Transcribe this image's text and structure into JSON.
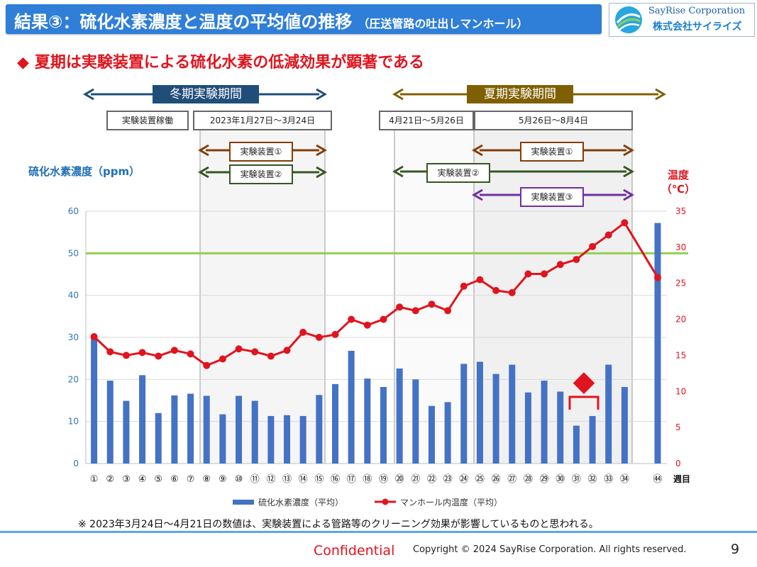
{
  "header": {
    "title": "結果③：硫化水素濃度と温度の平均値の推移",
    "subtitle": "（圧送管路の吐出しマンホール）",
    "logo_en": "SayRise Corporation",
    "logo_jp": "株式会社サイライズ"
  },
  "headline": {
    "marker": "◆",
    "text": "夏期は実験装置による硫化水素の低減効果が顕著である"
  },
  "periods": {
    "winter": "冬期実験期間",
    "summer": "夏期実験期間",
    "winter_op": "実験装置稼働",
    "winter_range": "2023年1月27日～3月24日",
    "summer_range1": "4月21日～5月26日",
    "summer_range2": "5月26日～8月4日",
    "device1": "実験装置①",
    "device2": "実験装置②",
    "device3": "実験装置③"
  },
  "colors": {
    "winter": "#1f4e79",
    "summer": "#7f6000",
    "device1": "#843c0c",
    "device2": "#375623",
    "device3": "#7030a0",
    "bar": "#4472c4",
    "line": "#e0141e",
    "threshold": "#92d050"
  },
  "chart_data": {
    "type": "bar",
    "ylabel": "硫化水素濃度（ppm）",
    "y2label": "温度（℃）",
    "xlabel": "週目",
    "ylim": [
      0,
      60
    ],
    "y2lim": [
      0,
      35
    ],
    "yticks": [
      "0",
      "10",
      "20",
      "30",
      "40",
      "50",
      "60"
    ],
    "y2ticks": [
      "0",
      "5",
      "10",
      "15",
      "20",
      "25",
      "30",
      "35"
    ],
    "threshold": 50,
    "categories": [
      "①",
      "②",
      "③",
      "④",
      "⑤",
      "⑥",
      "⑦",
      "⑧",
      "⑨",
      "⑩",
      "⑪",
      "⑫",
      "⑬",
      "⑭",
      "⑮",
      "⑯",
      "⑰",
      "⑱",
      "⑲",
      "⑳",
      "㉑",
      "㉒",
      "㉓",
      "㉔",
      "㉕",
      "㉖",
      "㉗",
      "㉘",
      "㉙",
      "㉚",
      "㉛",
      "㉜",
      "㉝",
      "㉞",
      "㊹"
    ],
    "series": [
      {
        "name": "硫化水素濃度（平均）",
        "type": "bar",
        "axis": "left",
        "values": [
          30,
          19.7,
          14.9,
          21,
          12,
          16.2,
          16.6,
          16.1,
          11.7,
          16.1,
          14.9,
          11.3,
          11.5,
          11.3,
          16.3,
          18.9,
          26.8,
          20.2,
          18.2,
          22.6,
          20,
          13.7,
          14.6,
          23.7,
          24.2,
          21.3,
          23.5,
          16.9,
          19.7,
          17.1,
          9,
          11.3,
          23.5,
          18.2,
          57.2
        ]
      },
      {
        "name": "マンホール内温度（平均）",
        "type": "line",
        "axis": "right",
        "values": [
          17.6,
          15.5,
          15,
          15.4,
          14.9,
          15.7,
          15.2,
          13.6,
          14.5,
          15.9,
          15.5,
          14.9,
          15.7,
          18.2,
          17.5,
          17.9,
          20,
          19.2,
          20,
          21.7,
          21.2,
          22.1,
          21.2,
          24.6,
          25.5,
          24,
          23.7,
          26.3,
          26.3,
          27.6,
          28.3,
          30.1,
          31.7,
          33.4,
          25.8
        ]
      }
    ]
  },
  "annotation": {
    "marker": "◆"
  },
  "note": "※ 2023年3月24日～4月21日の数値は、実験装置による管路等のクリーニング効果が影響しているものと思われる。",
  "footer": {
    "confidential": "Confidential",
    "copyright": "Copyright © 2024 SayRise Corporation. All rights reserved.",
    "page": "9"
  }
}
